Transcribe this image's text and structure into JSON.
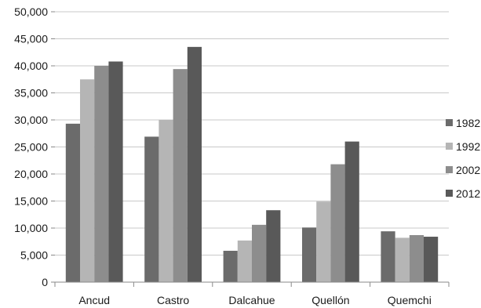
{
  "chart_data": {
    "type": "bar",
    "categories": [
      "Ancud",
      "Castro",
      "Dalcahue",
      "Quellón",
      "Quemchi"
    ],
    "series": [
      {
        "name": "1982",
        "values": [
          29300,
          26900,
          5800,
          10100,
          9400
        ],
        "color": "#6b6b6b"
      },
      {
        "name": "1992",
        "values": [
          37500,
          30000,
          7700,
          14900,
          8200
        ],
        "color": "#b5b5b5"
      },
      {
        "name": "2002",
        "values": [
          40000,
          39400,
          10600,
          21800,
          8700
        ],
        "color": "#8d8d8d"
      },
      {
        "name": "2012",
        "values": [
          40800,
          43500,
          13300,
          26000,
          8400
        ],
        "color": "#595959"
      }
    ],
    "yticks": [
      "0",
      "5,000",
      "10,000",
      "15,000",
      "20,000",
      "25,000",
      "30,000",
      "35,000",
      "40,000",
      "45,000",
      "50,000"
    ],
    "ylim": [
      0,
      50000
    ],
    "grid": true,
    "legend": "right"
  }
}
